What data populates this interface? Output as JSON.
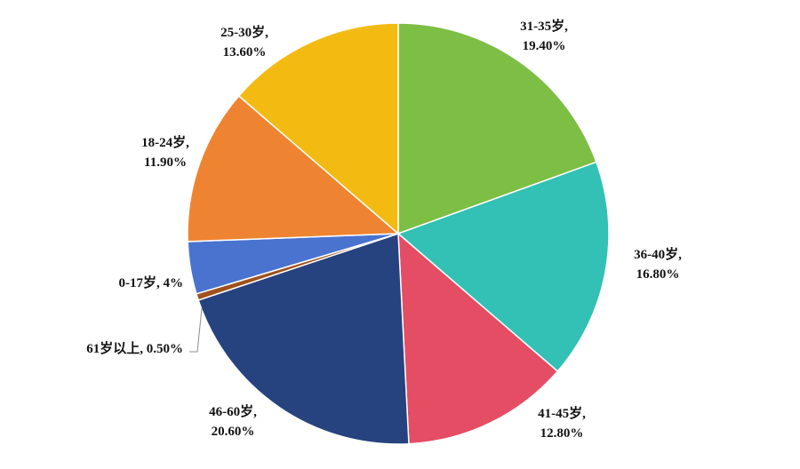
{
  "chart_data": {
    "type": "pie",
    "title": "",
    "slices": [
      {
        "label": "31-35岁",
        "value": 19.4,
        "display": "19.40%",
        "color": "#7DBE44"
      },
      {
        "label": "36-40岁",
        "value": 16.8,
        "display": "16.80%",
        "color": "#32C1B4"
      },
      {
        "label": "41-45岁",
        "value": 12.8,
        "display": "12.80%",
        "color": "#E44D63"
      },
      {
        "label": "46-60岁",
        "value": 20.6,
        "display": "20.60%",
        "color": "#26437F"
      },
      {
        "label": "61岁以上",
        "value": 0.5,
        "display": "0.50%",
        "color": "#A0521C"
      },
      {
        "label": "0-17岁",
        "value": 4,
        "display": "4%",
        "color": "#4A73CF"
      },
      {
        "label": "18-24岁",
        "value": 11.9,
        "display": "11.90%",
        "color": "#EE8431"
      },
      {
        "label": "25-30岁",
        "value": 13.6,
        "display": "13.60%",
        "color": "#F3BB12"
      }
    ],
    "start_angle": "12 o'clock",
    "direction": "clockwise",
    "legend": "none"
  }
}
